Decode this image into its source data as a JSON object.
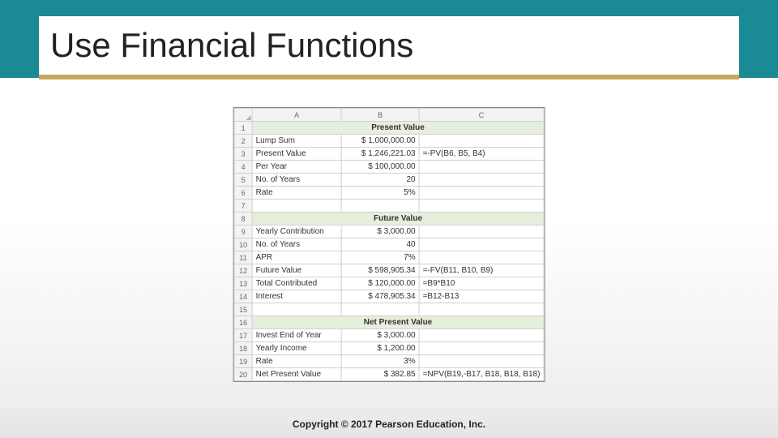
{
  "slide": {
    "title": "Use Financial Functions",
    "footer": "Copyright © 2017 Pearson Education, Inc."
  },
  "colors": {
    "header_band": "#1a8a95",
    "underline": "#c8a55b",
    "section_bg": "#e6eedc",
    "grid": "#d0d0d0",
    "hdr_bg": "#f3f3f3"
  },
  "sheet": {
    "columns": [
      "A",
      "B",
      "C"
    ],
    "rows": [
      {
        "n": "1",
        "a": "Present Value",
        "section": true
      },
      {
        "n": "2",
        "a": "Lump Sum",
        "b": "$ 1,000,000.00",
        "c": ""
      },
      {
        "n": "3",
        "a": "Present Value",
        "b": "$ 1,246,221.03",
        "c": "=-PV(B6, B5, B4)"
      },
      {
        "n": "4",
        "a": "Per Year",
        "b": "$    100,000.00",
        "c": ""
      },
      {
        "n": "5",
        "a": "No. of Years",
        "b": "20",
        "c": ""
      },
      {
        "n": "6",
        "a": "Rate",
        "b": "5%",
        "c": ""
      },
      {
        "n": "7",
        "a": "",
        "b": "",
        "c": ""
      },
      {
        "n": "8",
        "a": "Future Value",
        "section": true
      },
      {
        "n": "9",
        "a": "Yearly Contribution",
        "b": "$       3,000.00",
        "c": ""
      },
      {
        "n": "10",
        "a": "No. of  Years",
        "b": "40",
        "c": ""
      },
      {
        "n": "11",
        "a": "APR",
        "b": "7%",
        "c": ""
      },
      {
        "n": "12",
        "a": "Future Value",
        "b": "$   598,905.34",
        "c": "=-FV(B11, B10, B9)"
      },
      {
        "n": "13",
        "a": "Total Contributed",
        "b": "$   120,000.00",
        "c": "=B9*B10"
      },
      {
        "n": "14",
        "a": "Interest",
        "b": "$   478,905.34",
        "c": "=B12-B13"
      },
      {
        "n": "15",
        "a": "",
        "b": "",
        "c": ""
      },
      {
        "n": "16",
        "a": "Net Present Value",
        "section": true
      },
      {
        "n": "17",
        "a": "Invest End of Year",
        "b": "$       3,000.00",
        "c": ""
      },
      {
        "n": "18",
        "a": "Yearly Income",
        "b": "$       1,200.00",
        "c": ""
      },
      {
        "n": "19",
        "a": "Rate",
        "b": "3%",
        "c": ""
      },
      {
        "n": "20",
        "a": "Net Present Value",
        "b": "$          382.85",
        "c": "=NPV(B19,-B17, B18, B18, B18)"
      }
    ]
  }
}
